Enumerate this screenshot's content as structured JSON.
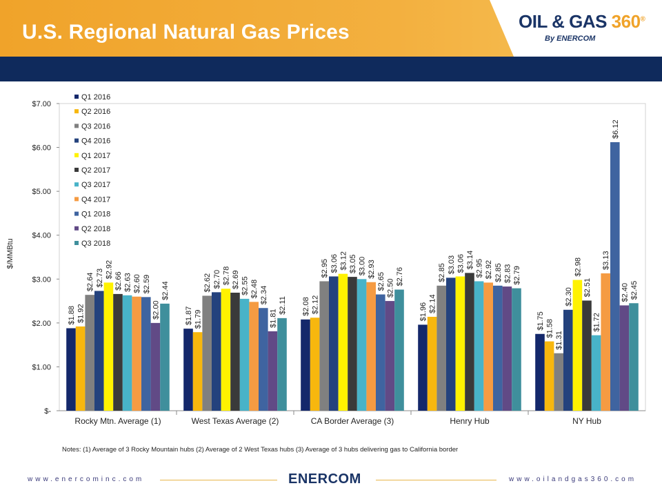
{
  "header": {
    "title": "U.S. Regional Natural Gas Prices",
    "logo_main_a": "OIL & GAS ",
    "logo_main_b": "360",
    "logo_reg": "®",
    "logo_sub": "By ENERCOM"
  },
  "notes": "Notes: (1) Average of 3 Rocky Mountain hubs (2) Average of 2 West Texas hubs (3) Average of 3 hubs delivering gas to California border",
  "footer": {
    "left_url": "www.enercominc.com",
    "right_url": "www.oilandgas360.com",
    "logo": "ENERCOM"
  },
  "colors": {
    "header_orange": "#f0a32a",
    "band_navy": "#0f2a5c"
  },
  "chart_data": {
    "type": "bar",
    "ylabel": "$/MMBtu",
    "xlabel": "",
    "ylim": [
      0,
      7
    ],
    "yticks": [
      "$-",
      "$1.00",
      "$2.00",
      "$3.00",
      "$4.00",
      "$5.00",
      "$6.00",
      "$7.00"
    ],
    "legend_position": "top-left",
    "categories": [
      "Rocky Mtn. Average (1)",
      "West Texas Average (2)",
      "CA Border Average (3)",
      "Henry Hub",
      "NY Hub"
    ],
    "series": [
      {
        "name": "Q1 2016",
        "color": "#14286b",
        "values": [
          1.88,
          1.87,
          2.08,
          1.96,
          1.75
        ],
        "labels": [
          "$1.88",
          "$1.87",
          "$2.08",
          "$1.96",
          "$1.75"
        ]
      },
      {
        "name": "Q2 2016",
        "color": "#f7b70e",
        "values": [
          1.92,
          1.79,
          2.12,
          2.14,
          1.58
        ],
        "labels": [
          "$1.92",
          "$1.79",
          "$2.12",
          "$2.14",
          "$1.58"
        ]
      },
      {
        "name": "Q3 2016",
        "color": "#808080",
        "values": [
          2.64,
          2.62,
          2.95,
          2.85,
          1.31
        ],
        "labels": [
          "$2.64",
          "$2.62",
          "$2.95",
          "$2.85",
          "$1.31"
        ]
      },
      {
        "name": "Q4 2016",
        "color": "#24427d",
        "values": [
          2.73,
          2.7,
          3.06,
          3.03,
          2.3
        ],
        "labels": [
          "$2.73",
          "$2.70",
          "$3.06",
          "$3.03",
          "$2.30"
        ]
      },
      {
        "name": "Q1 2017",
        "color": "#fff200",
        "values": [
          2.92,
          2.78,
          3.12,
          3.06,
          2.98
        ],
        "labels": [
          "$2.92",
          "$2.78",
          "$3.12",
          "$3.06",
          "$2.98"
        ]
      },
      {
        "name": "Q2 2017",
        "color": "#3a3a3a",
        "values": [
          2.66,
          2.69,
          3.05,
          3.14,
          2.51
        ],
        "labels": [
          "$2.66",
          "$2.69",
          "$3.05",
          "$3.14",
          "$2.51"
        ]
      },
      {
        "name": "Q3 2017",
        "color": "#48b3c8",
        "values": [
          2.63,
          2.55,
          3.0,
          2.95,
          1.72
        ],
        "labels": [
          "$2.63",
          "$2.55",
          "$3.00",
          "$2.95",
          "$1.72"
        ]
      },
      {
        "name": "Q4 2017",
        "color": "#f59b42",
        "values": [
          2.6,
          2.48,
          2.93,
          2.92,
          3.13
        ],
        "labels": [
          "$2.60",
          "$2.48",
          "$2.93",
          "$2.92",
          "$3.13"
        ]
      },
      {
        "name": "Q1 2018",
        "color": "#3f64a0",
        "values": [
          2.59,
          2.34,
          2.65,
          2.85,
          6.12
        ],
        "labels": [
          "$2.59",
          "$2.34",
          "$2.65",
          "$2.85",
          "$6.12"
        ]
      },
      {
        "name": "Q2 2018",
        "color": "#614a86",
        "values": [
          2.0,
          1.81,
          2.5,
          2.83,
          2.4
        ],
        "labels": [
          "$2.00",
          "$1.81",
          "$2.50",
          "$2.83",
          "$2.40"
        ]
      },
      {
        "name": "Q3 2018",
        "color": "#3f8f9c",
        "values": [
          2.44,
          2.11,
          2.76,
          2.79,
          2.45
        ],
        "labels": [
          "$2.44",
          "$2.11",
          "$2.76",
          "$2.79",
          "$2.45"
        ]
      }
    ]
  }
}
